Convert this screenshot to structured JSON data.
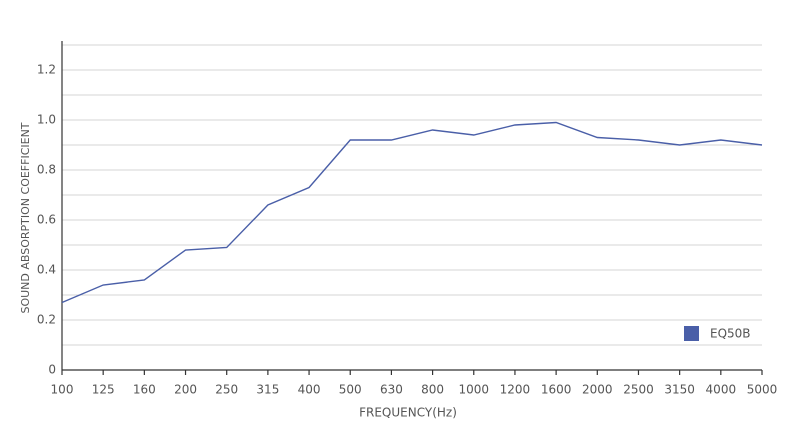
{
  "chart_data": {
    "type": "line",
    "x_label": "FREQUENCY(Hz)",
    "y_label": "SOUND ABSORPTION COEFFICIENT",
    "categories": [
      "100",
      "125",
      "160",
      "200",
      "250",
      "315",
      "400",
      "500",
      "630",
      "800",
      "1000",
      "1200",
      "1600",
      "2000",
      "2500",
      "3150",
      "4000",
      "5000"
    ],
    "series": [
      {
        "name": "EQ50B",
        "color": "#4a5fa8",
        "values": [
          0.27,
          0.34,
          0.36,
          0.48,
          0.49,
          0.66,
          0.73,
          0.92,
          0.92,
          0.96,
          0.94,
          0.98,
          0.99,
          0.93,
          0.92,
          0.9,
          0.92,
          0.9
        ]
      }
    ],
    "ylim": [
      0,
      1.3
    ],
    "yticks": [
      0,
      0.2,
      0.4,
      0.6,
      0.8,
      {
        "value": 1,
        "label": "1.0"
      },
      1.2
    ],
    "y_minor_ticks": [
      0.1,
      0.3,
      0.5,
      0.7,
      0.9,
      1.1,
      1.3
    ],
    "grid": true,
    "legend": "bottom-right"
  }
}
